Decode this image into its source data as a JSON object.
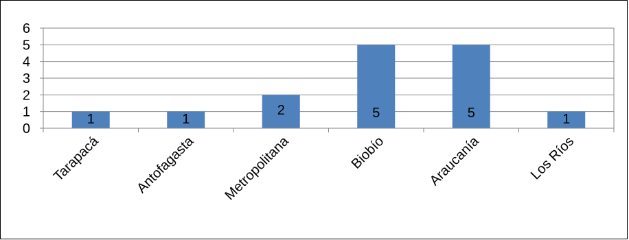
{
  "chart_data": {
    "type": "bar",
    "title": "",
    "xlabel": "",
    "ylabel": "",
    "categories": [
      "Tarapacá",
      "Antofagasta",
      "Metropolitana",
      "Biobío",
      "Araucanía",
      "Los Ríos"
    ],
    "values": [
      1,
      1,
      2,
      5,
      5,
      1
    ],
    "data_labels": [
      "1",
      "1",
      "2",
      "5",
      "5",
      "1"
    ],
    "ylim": [
      0,
      6
    ],
    "yticks": [
      "0",
      "1",
      "2",
      "3",
      "4",
      "5",
      "6"
    ],
    "grid": true,
    "legend": "none",
    "bar_color": "#4f81bd",
    "grid_color": "#868686"
  }
}
